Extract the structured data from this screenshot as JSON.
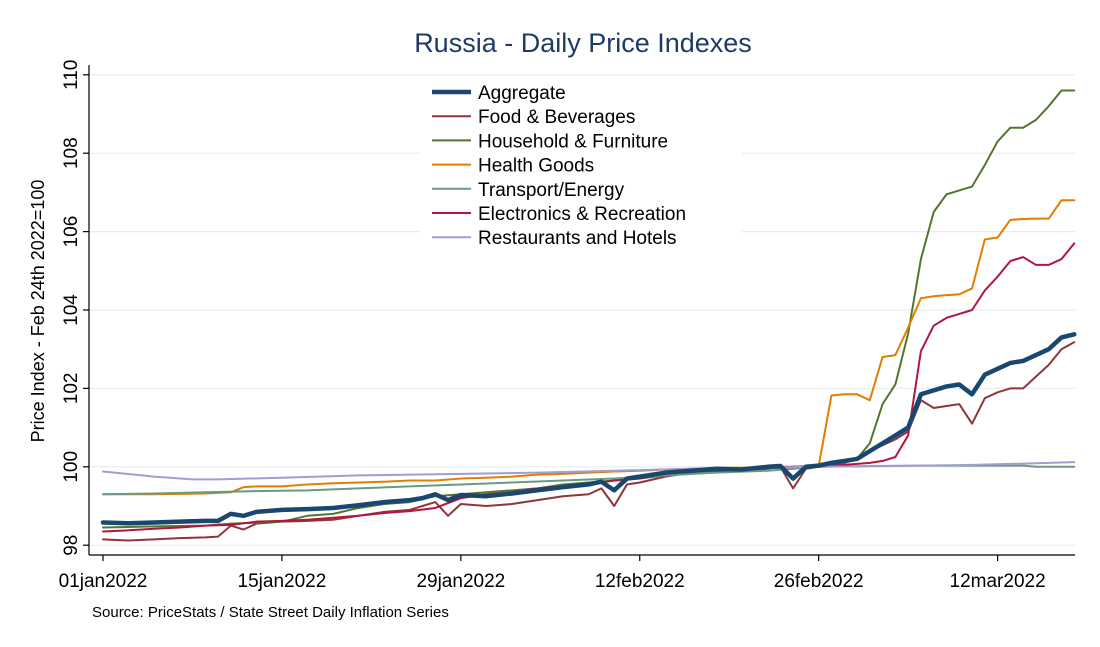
{
  "chart_data": {
    "type": "line",
    "title": "Russia - Daily Price Indexes",
    "ylabel": "Price Index - Feb 24th 2022=100",
    "xlabel": "",
    "source": "Source: PriceStats / State Street Daily Inflation Series",
    "ylim": [
      97.75,
      110.25
    ],
    "yticks": [
      98,
      100,
      102,
      104,
      106,
      108,
      110
    ],
    "xticks": [
      {
        "day": 0,
        "label": "01jan2022"
      },
      {
        "day": 14,
        "label": "15jan2022"
      },
      {
        "day": 28,
        "label": "29jan2022"
      },
      {
        "day": 42,
        "label": "12feb2022"
      },
      {
        "day": 56,
        "label": "26feb2022"
      },
      {
        "day": 70,
        "label": "12mar2022"
      }
    ],
    "grid": true,
    "legend_position": "top-center",
    "series": [
      {
        "name": "Aggregate",
        "color": "#1a476f",
        "width": 4.5,
        "points": [
          [
            0,
            98.58
          ],
          [
            2,
            98.56
          ],
          [
            4,
            98.58
          ],
          [
            6,
            98.6
          ],
          [
            8,
            98.62
          ],
          [
            9,
            98.62
          ],
          [
            10,
            98.8
          ],
          [
            11,
            98.75
          ],
          [
            12,
            98.85
          ],
          [
            14,
            98.9
          ],
          [
            16,
            98.92
          ],
          [
            18,
            98.95
          ],
          [
            20,
            99.02
          ],
          [
            22,
            99.1
          ],
          [
            24,
            99.15
          ],
          [
            25,
            99.2
          ],
          [
            26,
            99.3
          ],
          [
            27,
            99.15
          ],
          [
            28,
            99.28
          ],
          [
            30,
            99.25
          ],
          [
            32,
            99.32
          ],
          [
            34,
            99.4
          ],
          [
            36,
            99.48
          ],
          [
            38,
            99.55
          ],
          [
            39,
            99.62
          ],
          [
            40,
            99.4
          ],
          [
            41,
            99.7
          ],
          [
            42,
            99.75
          ],
          [
            44,
            99.85
          ],
          [
            46,
            99.9
          ],
          [
            48,
            99.95
          ],
          [
            50,
            99.93
          ],
          [
            52,
            100.0
          ],
          [
            53,
            100.02
          ],
          [
            54,
            99.7
          ],
          [
            55,
            100.0
          ],
          [
            56,
            100.03
          ],
          [
            57,
            100.1
          ],
          [
            58,
            100.15
          ],
          [
            59,
            100.2
          ],
          [
            60,
            100.4
          ],
          [
            61,
            100.6
          ],
          [
            62,
            100.8
          ],
          [
            63,
            101.0
          ],
          [
            64,
            101.85
          ],
          [
            65,
            101.95
          ],
          [
            66,
            102.05
          ],
          [
            67,
            102.1
          ],
          [
            68,
            101.85
          ],
          [
            69,
            102.35
          ],
          [
            70,
            102.5
          ],
          [
            71,
            102.65
          ],
          [
            72,
            102.7
          ],
          [
            73,
            102.85
          ],
          [
            74,
            103.0
          ],
          [
            75,
            103.3
          ],
          [
            76,
            103.38
          ]
        ]
      },
      {
        "name": "Food & Beverages",
        "color": "#90353b",
        "width": 2,
        "points": [
          [
            0,
            98.15
          ],
          [
            2,
            98.12
          ],
          [
            4,
            98.15
          ],
          [
            6,
            98.18
          ],
          [
            8,
            98.2
          ],
          [
            9,
            98.22
          ],
          [
            10,
            98.5
          ],
          [
            11,
            98.4
          ],
          [
            12,
            98.55
          ],
          [
            14,
            98.6
          ],
          [
            16,
            98.62
          ],
          [
            18,
            98.65
          ],
          [
            20,
            98.75
          ],
          [
            22,
            98.85
          ],
          [
            24,
            98.9
          ],
          [
            25,
            99.0
          ],
          [
            26,
            99.1
          ],
          [
            27,
            98.75
          ],
          [
            28,
            99.05
          ],
          [
            30,
            99.0
          ],
          [
            32,
            99.05
          ],
          [
            34,
            99.15
          ],
          [
            36,
            99.25
          ],
          [
            38,
            99.3
          ],
          [
            39,
            99.45
          ],
          [
            40,
            99.0
          ],
          [
            41,
            99.55
          ],
          [
            42,
            99.6
          ],
          [
            44,
            99.75
          ],
          [
            46,
            99.85
          ],
          [
            48,
            99.9
          ],
          [
            50,
            99.9
          ],
          [
            52,
            99.95
          ],
          [
            53,
            100.0
          ],
          [
            54,
            99.45
          ],
          [
            55,
            99.95
          ],
          [
            56,
            100.0
          ],
          [
            57,
            100.05
          ],
          [
            58,
            100.1
          ],
          [
            59,
            100.2
          ],
          [
            60,
            100.4
          ],
          [
            61,
            100.55
          ],
          [
            62,
            100.7
          ],
          [
            63,
            100.9
          ],
          [
            64,
            101.7
          ],
          [
            65,
            101.5
          ],
          [
            66,
            101.55
          ],
          [
            67,
            101.6
          ],
          [
            68,
            101.1
          ],
          [
            69,
            101.75
          ],
          [
            70,
            101.9
          ],
          [
            71,
            102.0
          ],
          [
            72,
            102.0
          ],
          [
            73,
            102.3
          ],
          [
            74,
            102.6
          ],
          [
            75,
            103.0
          ],
          [
            76,
            103.18
          ]
        ]
      },
      {
        "name": "Household & Furniture",
        "color": "#55752f",
        "width": 2,
        "points": [
          [
            0,
            98.45
          ],
          [
            4,
            98.48
          ],
          [
            8,
            98.5
          ],
          [
            10,
            98.55
          ],
          [
            14,
            98.6
          ],
          [
            16,
            98.75
          ],
          [
            18,
            98.8
          ],
          [
            20,
            98.95
          ],
          [
            22,
            99.05
          ],
          [
            24,
            99.1
          ],
          [
            26,
            99.25
          ],
          [
            28,
            99.3
          ],
          [
            30,
            99.35
          ],
          [
            32,
            99.4
          ],
          [
            34,
            99.45
          ],
          [
            36,
            99.55
          ],
          [
            38,
            99.6
          ],
          [
            40,
            99.65
          ],
          [
            42,
            99.7
          ],
          [
            44,
            99.78
          ],
          [
            46,
            99.85
          ],
          [
            48,
            99.9
          ],
          [
            50,
            99.92
          ],
          [
            52,
            99.98
          ],
          [
            54,
            99.95
          ],
          [
            56,
            100.02
          ],
          [
            58,
            100.1
          ],
          [
            59,
            100.2
          ],
          [
            60,
            100.6
          ],
          [
            61,
            101.6
          ],
          [
            62,
            102.1
          ],
          [
            63,
            103.4
          ],
          [
            64,
            105.3
          ],
          [
            65,
            106.5
          ],
          [
            66,
            106.95
          ],
          [
            67,
            107.05
          ],
          [
            68,
            107.15
          ],
          [
            69,
            107.7
          ],
          [
            70,
            108.3
          ],
          [
            71,
            108.65
          ],
          [
            72,
            108.65
          ],
          [
            73,
            108.85
          ],
          [
            74,
            109.2
          ],
          [
            75,
            109.6
          ],
          [
            76,
            109.6
          ]
        ]
      },
      {
        "name": "Health Goods",
        "color": "#e37e00",
        "width": 2,
        "points": [
          [
            0,
            99.3
          ],
          [
            4,
            99.3
          ],
          [
            8,
            99.32
          ],
          [
            10,
            99.35
          ],
          [
            11,
            99.48
          ],
          [
            12,
            99.5
          ],
          [
            14,
            99.5
          ],
          [
            16,
            99.55
          ],
          [
            18,
            99.58
          ],
          [
            20,
            99.6
          ],
          [
            22,
            99.62
          ],
          [
            24,
            99.65
          ],
          [
            26,
            99.65
          ],
          [
            28,
            99.7
          ],
          [
            30,
            99.72
          ],
          [
            32,
            99.75
          ],
          [
            34,
            99.8
          ],
          [
            36,
            99.82
          ],
          [
            38,
            99.85
          ],
          [
            40,
            99.88
          ],
          [
            42,
            99.9
          ],
          [
            44,
            99.93
          ],
          [
            46,
            99.95
          ],
          [
            48,
            99.97
          ],
          [
            50,
            99.98
          ],
          [
            52,
            100.0
          ],
          [
            54,
            100.0
          ],
          [
            55,
            100.0
          ],
          [
            56,
            100.02
          ],
          [
            57,
            101.82
          ],
          [
            58,
            101.85
          ],
          [
            59,
            101.85
          ],
          [
            60,
            101.7
          ],
          [
            61,
            102.8
          ],
          [
            62,
            102.85
          ],
          [
            63,
            103.55
          ],
          [
            64,
            104.3
          ],
          [
            65,
            104.35
          ],
          [
            66,
            104.38
          ],
          [
            67,
            104.4
          ],
          [
            68,
            104.55
          ],
          [
            69,
            105.8
          ],
          [
            70,
            105.85
          ],
          [
            71,
            106.3
          ],
          [
            72,
            106.32
          ],
          [
            73,
            106.33
          ],
          [
            74,
            106.33
          ],
          [
            75,
            106.8
          ],
          [
            76,
            106.8
          ]
        ]
      },
      {
        "name": "Transport/Energy",
        "color": "#6a9a83",
        "width": 2,
        "points": [
          [
            0,
            99.3
          ],
          [
            4,
            99.32
          ],
          [
            8,
            99.35
          ],
          [
            12,
            99.38
          ],
          [
            16,
            99.4
          ],
          [
            20,
            99.45
          ],
          [
            24,
            99.5
          ],
          [
            28,
            99.55
          ],
          [
            32,
            99.6
          ],
          [
            36,
            99.65
          ],
          [
            40,
            99.7
          ],
          [
            44,
            99.78
          ],
          [
            48,
            99.85
          ],
          [
            52,
            99.9
          ],
          [
            54,
            99.95
          ],
          [
            56,
            100.0
          ],
          [
            60,
            100.02
          ],
          [
            64,
            100.03
          ],
          [
            68,
            100.03
          ],
          [
            72,
            100.03
          ],
          [
            73,
            100.0
          ],
          [
            76,
            100.0
          ]
        ]
      },
      {
        "name": "Electronics & Recreation",
        "color": "#b1163f",
        "width": 2,
        "points": [
          [
            0,
            98.35
          ],
          [
            2,
            98.38
          ],
          [
            4,
            98.42
          ],
          [
            6,
            98.45
          ],
          [
            8,
            98.5
          ],
          [
            10,
            98.52
          ],
          [
            12,
            98.6
          ],
          [
            14,
            98.62
          ],
          [
            16,
            98.65
          ],
          [
            18,
            98.7
          ],
          [
            20,
            98.75
          ],
          [
            22,
            98.82
          ],
          [
            24,
            98.87
          ],
          [
            26,
            98.95
          ],
          [
            28,
            99.2
          ],
          [
            30,
            99.3
          ],
          [
            32,
            99.35
          ],
          [
            34,
            99.45
          ],
          [
            36,
            99.5
          ],
          [
            38,
            99.55
          ],
          [
            40,
            99.65
          ],
          [
            42,
            99.7
          ],
          [
            44,
            99.85
          ],
          [
            46,
            99.9
          ],
          [
            48,
            99.9
          ],
          [
            50,
            99.92
          ],
          [
            52,
            99.97
          ],
          [
            54,
            100.0
          ],
          [
            56,
            100.02
          ],
          [
            58,
            100.05
          ],
          [
            60,
            100.1
          ],
          [
            61,
            100.15
          ],
          [
            62,
            100.25
          ],
          [
            63,
            100.8
          ],
          [
            64,
            102.95
          ],
          [
            65,
            103.6
          ],
          [
            66,
            103.8
          ],
          [
            67,
            103.9
          ],
          [
            68,
            104.0
          ],
          [
            69,
            104.5
          ],
          [
            70,
            104.85
          ],
          [
            71,
            105.25
          ],
          [
            72,
            105.35
          ],
          [
            73,
            105.15
          ],
          [
            74,
            105.15
          ],
          [
            75,
            105.3
          ],
          [
            76,
            105.7
          ]
        ]
      },
      {
        "name": "Restaurants and Hotels",
        "color": "#a39dd1",
        "width": 2,
        "points": [
          [
            0,
            99.88
          ],
          [
            4,
            99.75
          ],
          [
            7,
            99.68
          ],
          [
            9,
            99.68
          ],
          [
            14,
            99.72
          ],
          [
            20,
            99.78
          ],
          [
            28,
            99.82
          ],
          [
            34,
            99.85
          ],
          [
            40,
            99.9
          ],
          [
            46,
            99.95
          ],
          [
            52,
            99.98
          ],
          [
            56,
            100.0
          ],
          [
            62,
            100.02
          ],
          [
            68,
            100.05
          ],
          [
            72,
            100.08
          ],
          [
            76,
            100.12
          ]
        ]
      }
    ]
  }
}
